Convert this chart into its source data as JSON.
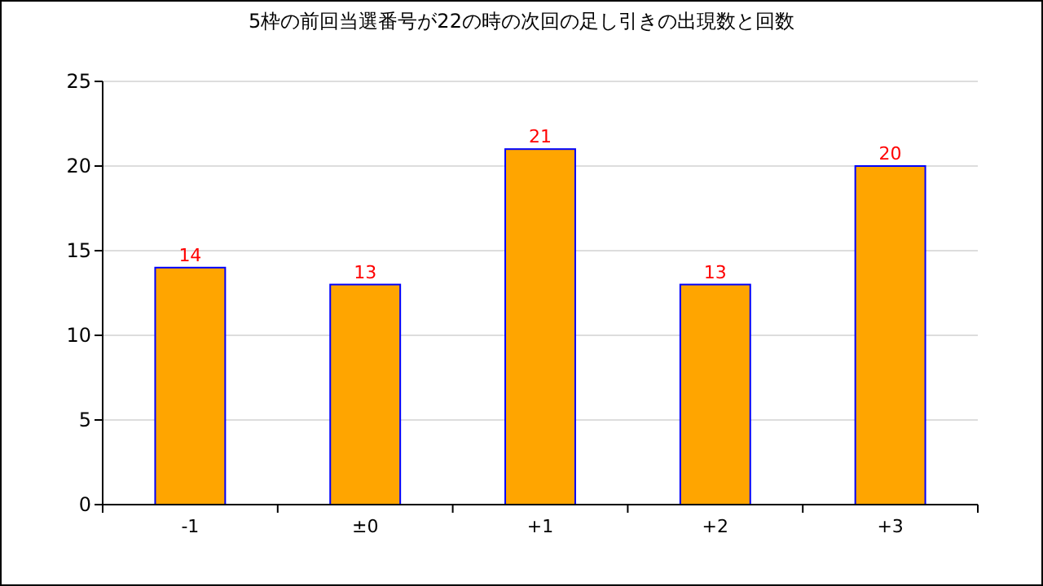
{
  "chart_data": {
    "type": "bar",
    "title": "5枠の前回当選番号が22の時の次回の足し引きの出現数と回数",
    "categories": [
      "-1",
      "±0",
      "+1",
      "+2",
      "+3"
    ],
    "values": [
      14,
      13,
      21,
      13,
      20
    ],
    "color": "#ffa500",
    "ylim": [
      0,
      25
    ],
    "yticks": [
      0,
      5,
      10,
      15,
      20,
      25
    ],
    "grid": "y",
    "data_labels": true
  }
}
